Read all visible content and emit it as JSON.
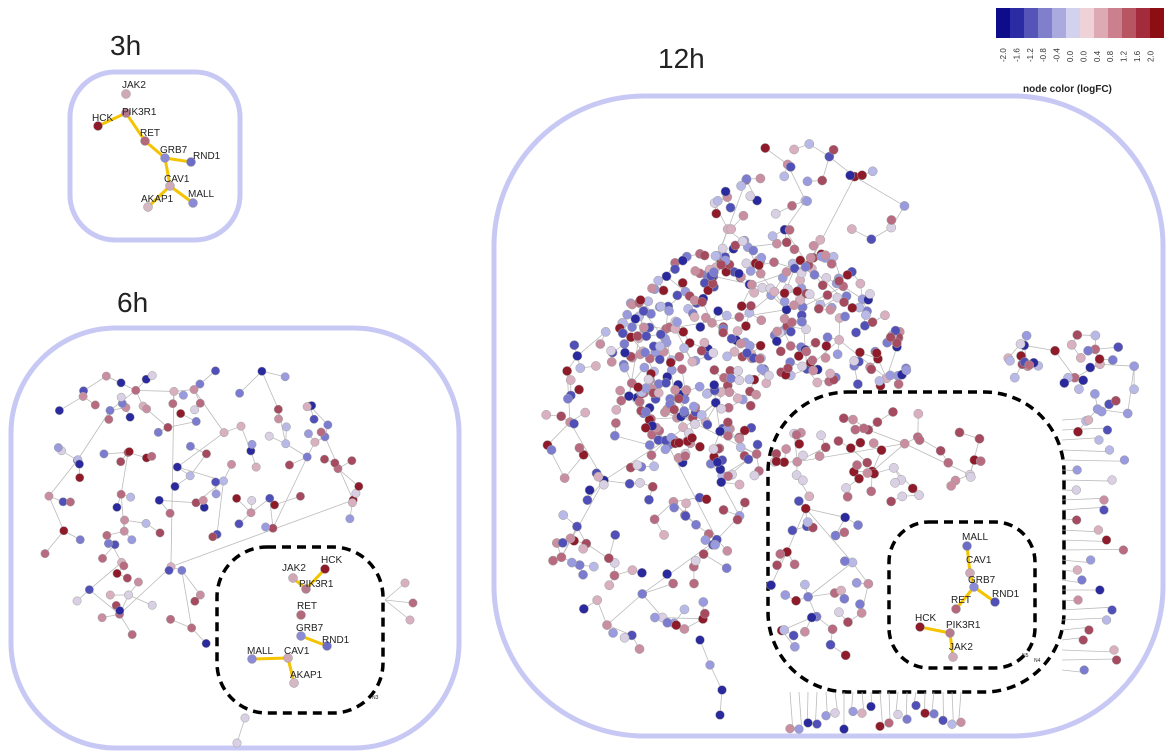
{
  "panels": {
    "p3h": {
      "title": "3h",
      "labels": [
        "JAK2",
        "PIK3R1",
        "HCK",
        "RET",
        "GRB7",
        "RND1",
        "CAV1",
        "MALL",
        "AKAP1"
      ]
    },
    "p6h": {
      "title": "6h",
      "labels": [
        "HCK",
        "JAK2",
        "PIK3R1",
        "RET",
        "GRB7",
        "RND1",
        "MALL",
        "CAV1",
        "AKAP1"
      ],
      "boundary_labels": [
        "N3"
      ]
    },
    "p12h": {
      "title": "12h",
      "labels": [
        "MALL",
        "CAV1",
        "GRB7",
        "RND1",
        "RET",
        "HCK",
        "PIK3R1",
        "JAK2"
      ],
      "boundary_labels": [
        "N5",
        "N4"
      ]
    }
  },
  "legend": {
    "title": "node color (logFC)",
    "ticks": [
      "-2.0",
      "-1.6",
      "-1.2",
      "-0.8",
      "-0.4",
      "0.0",
      "0.0",
      "0.4",
      "0.8",
      "1.2",
      "1.6",
      "2.0"
    ],
    "colors": [
      "#0d0d8c",
      "#2b2ba3",
      "#5555b8",
      "#7f7fcc",
      "#aaaadf",
      "#d2d2ef",
      "#efd2d8",
      "#ddaab4",
      "#cc7f8c",
      "#b85563",
      "#a32b3b",
      "#8c0d12"
    ]
  },
  "colors": {
    "edge": "#bbbbbb",
    "core_edge": "#f5c400",
    "panel_border": "#c8c8f5"
  }
}
